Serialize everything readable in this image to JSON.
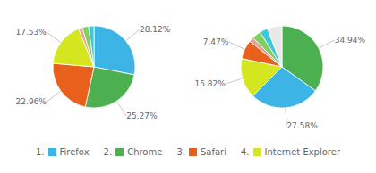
{
  "chart_data": [
    {
      "type": "pie",
      "categories": [
        "Firefox",
        "Chrome",
        "Safari",
        "Internet Explorer",
        null,
        null,
        null
      ],
      "values": [
        28.12,
        25.27,
        22.96,
        17.53,
        1.5,
        2.5,
        2.12
      ],
      "colors": [
        "#3cb4e5",
        "#4caf50",
        "#e8601c",
        "#d4e620",
        "#e8a090",
        "#80d060",
        "#40c8d8"
      ],
      "data_labels": true,
      "value_labels": [
        "28.12%",
        "25.27%",
        "22.96%",
        "17.53%",
        null,
        null,
        null
      ],
      "legend": "bottom",
      "annotations": [
        "1.",
        "2.",
        "3.",
        "4."
      ]
    },
    {
      "type": "pie",
      "categories": [
        "Chrome",
        "Firefox",
        "Internet Explorer",
        "Safari",
        null,
        null,
        null,
        null
      ],
      "values": [
        34.94,
        27.58,
        15.82,
        7.47,
        1.8,
        3.5,
        3.2,
        5.76
      ],
      "colors": [
        "#4caf50",
        "#3cb4e5",
        "#d4e620",
        "#e8601c",
        "#e8a090",
        "#80d060",
        "#40c8d8",
        "#e8e8e8"
      ],
      "data_labels": true,
      "value_labels": [
        "34.94%",
        "27.58%",
        "15.82%",
        "7.47%",
        null,
        null,
        null,
        null
      ]
    }
  ]
}
